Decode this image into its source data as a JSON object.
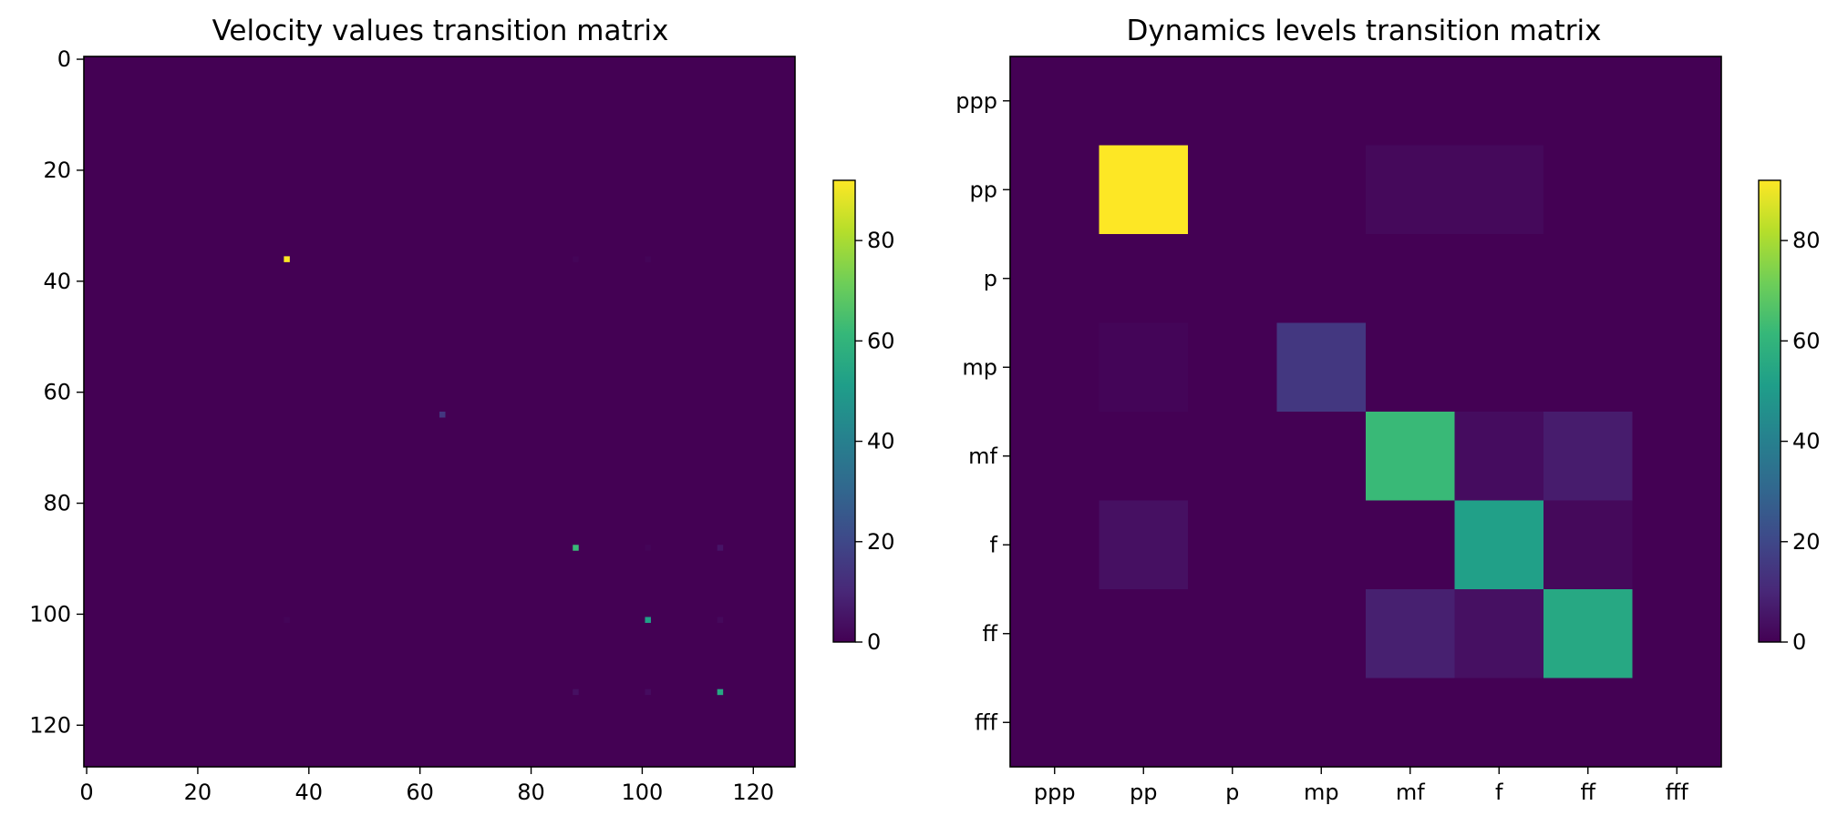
{
  "colormap": {
    "name": "viridis",
    "stops": [
      "#440154",
      "#482878",
      "#3e4989",
      "#31688e",
      "#26828e",
      "#1f9e89",
      "#35b779",
      "#6ece58",
      "#b5de2b",
      "#fde725"
    ]
  },
  "chart_data": [
    {
      "type": "heatmap",
      "title": "Velocity values transition matrix",
      "size": 128,
      "xlim": [
        0,
        127
      ],
      "ylim": [
        127,
        0
      ],
      "x_ticks": [
        0,
        20,
        40,
        60,
        80,
        100,
        120
      ],
      "y_ticks": [
        0,
        20,
        40,
        60,
        80,
        100,
        120
      ],
      "vmin": 0,
      "vmax": 92,
      "colorbar_ticks": [
        0,
        20,
        40,
        60,
        80
      ],
      "cells": [
        {
          "row": 36,
          "col": 36,
          "value": 92
        },
        {
          "row": 36,
          "col": 88,
          "value": 1
        },
        {
          "row": 36,
          "col": 101,
          "value": 1
        },
        {
          "row": 64,
          "col": 64,
          "value": 15
        },
        {
          "row": 88,
          "col": 88,
          "value": 62
        },
        {
          "row": 88,
          "col": 101,
          "value": 1
        },
        {
          "row": 88,
          "col": 114,
          "value": 5
        },
        {
          "row": 101,
          "col": 36,
          "value": 1
        },
        {
          "row": 101,
          "col": 101,
          "value": 52
        },
        {
          "row": 101,
          "col": 114,
          "value": 2
        },
        {
          "row": 114,
          "col": 88,
          "value": 4
        },
        {
          "row": 114,
          "col": 101,
          "value": 3
        },
        {
          "row": 114,
          "col": 114,
          "value": 55
        }
      ]
    },
    {
      "type": "heatmap",
      "title": "Dynamics levels transition matrix",
      "categories": [
        "ppp",
        "pp",
        "p",
        "mp",
        "mf",
        "f",
        "ff",
        "fff"
      ],
      "vmin": 0,
      "vmax": 92,
      "colorbar_ticks": [
        0,
        20,
        40,
        60,
        80
      ],
      "matrix": [
        [
          0,
          0,
          0,
          0,
          0,
          0,
          0,
          0
        ],
        [
          0,
          92,
          0,
          0,
          2,
          2,
          0,
          0
        ],
        [
          0,
          0,
          0,
          0,
          0,
          0,
          0,
          0
        ],
        [
          0,
          1,
          0,
          15,
          0,
          0,
          0,
          0
        ],
        [
          0,
          0,
          0,
          0,
          62,
          3,
          7,
          0
        ],
        [
          0,
          4,
          0,
          0,
          0,
          52,
          2,
          0
        ],
        [
          0,
          0,
          0,
          0,
          8,
          4,
          55,
          0
        ],
        [
          0,
          0,
          0,
          0,
          0,
          0,
          0,
          0
        ]
      ]
    }
  ]
}
